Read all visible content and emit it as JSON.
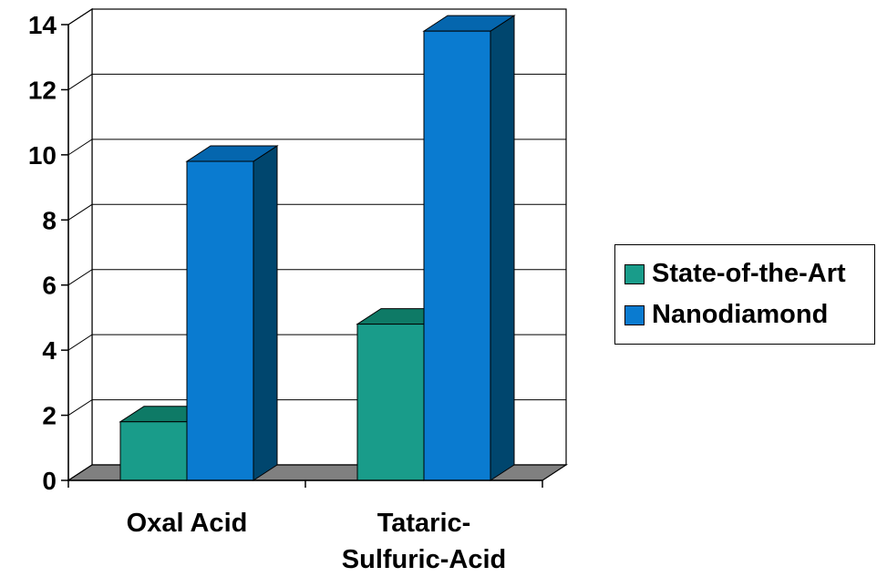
{
  "chart_data": {
    "type": "bar",
    "categories": [
      "Oxal Acid",
      "Tataric-Sulfuric-Acid"
    ],
    "category_lines": [
      [
        "Oxal Acid"
      ],
      [
        "Tataric-",
        "Sulfuric-Acid"
      ]
    ],
    "series": [
      {
        "name": "State-of-the-Art",
        "values": [
          1.8,
          4.8
        ],
        "color": "#199C8A",
        "top_color": "#0E7A66",
        "side_color": "#0A5548"
      },
      {
        "name": "Nanodiamond",
        "values": [
          9.8,
          13.8
        ],
        "color": "#0A7BD0",
        "top_color": "#0566AE",
        "side_color": "#00466E"
      }
    ],
    "legend_labels": [
      "State-of-the-Art",
      "Nanodiamond"
    ],
    "yticks": [
      0,
      2,
      4,
      6,
      8,
      10,
      12,
      14
    ],
    "ylim": [
      0,
      14
    ],
    "grid": true,
    "legend_position": "right",
    "floor_color": "#808080"
  }
}
